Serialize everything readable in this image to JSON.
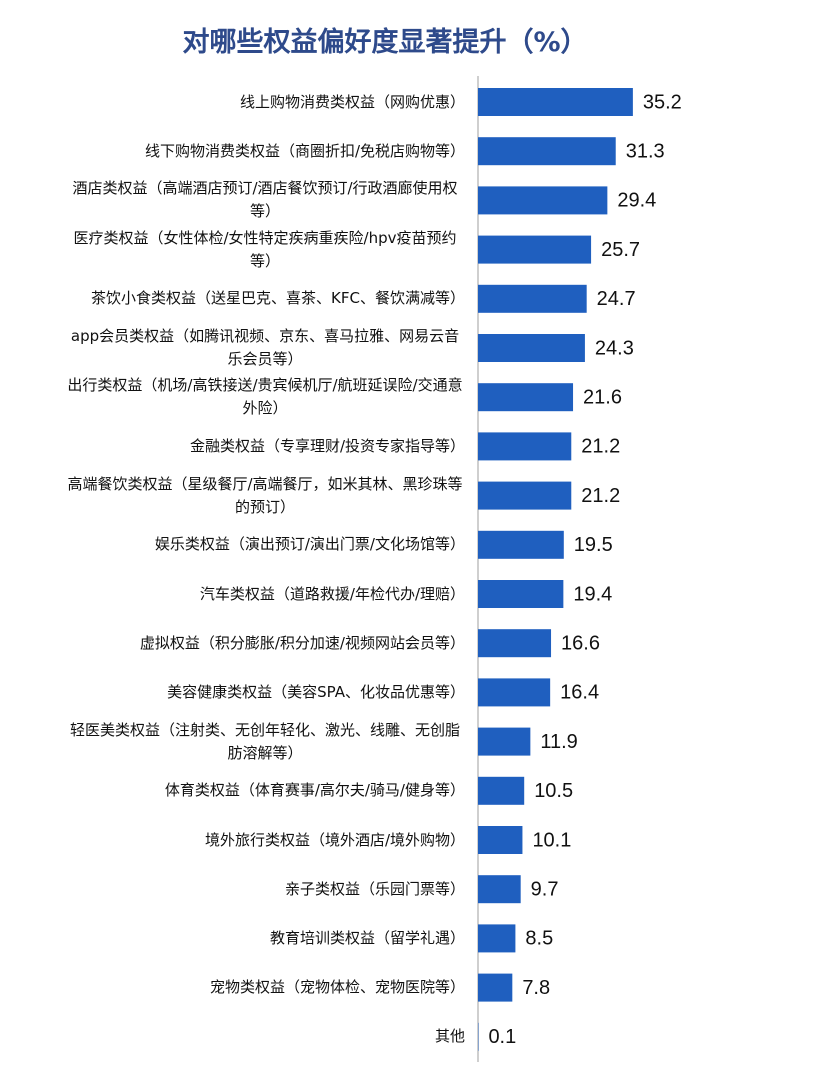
{
  "chart_data": {
    "type": "barh",
    "title": "对哪些权益偏好度显著提升（%）",
    "categories": [
      "线上购物消费类权益（网购优惠）",
      "线下购物消费类权益（商圈折扣/免税店购物等）",
      "酒店类权益（高端酒店预订/酒店餐饮预订/行政酒廊使用权等）",
      "医疗类权益（女性体检/女性特定疾病重疾险/hpv疫苗预约等）",
      "茶饮小食类权益（送星巴克、喜茶、KFC、餐饮满减等）",
      "app会员类权益（如腾讯视频、京东、喜马拉雅、网易云音乐会员等）",
      "出行类权益（机场/高铁接送/贵宾候机厅/航班延误险/交通意外险）",
      "金融类权益（专享理财/投资专家指导等）",
      "高端餐饮类权益（星级餐厅/高端餐厅，如米其林、黑珍珠等的预订）",
      "娱乐类权益（演出预订/演出门票/文化场馆等）",
      "汽车类权益（道路救援/年检代办/理赔）",
      "虚拟权益（积分膨胀/积分加速/视频网站会员等）",
      "美容健康类权益（美容SPA、化妆品优惠等）",
      "轻医美类权益（注射类、无创年轻化、激光、线雕、无创脂肪溶解等）",
      "体育类权益（体育赛事/高尔夫/骑马/健身等）",
      "境外旅行类权益（境外酒店/境外购物）",
      "亲子类权益（乐园门票等）",
      "教育培训类权益（留学礼遇）",
      "宠物类权益（宠物体检、宠物医院等）",
      "其他"
    ],
    "values": [
      35.2,
      31.3,
      29.4,
      25.7,
      24.7,
      24.3,
      21.6,
      21.2,
      21.2,
      19.5,
      19.4,
      16.6,
      16.4,
      11.9,
      10.5,
      10.1,
      9.7,
      8.5,
      7.8,
      0.1
    ],
    "color": "#1f5fbf",
    "xlim": [
      0,
      80
    ]
  }
}
